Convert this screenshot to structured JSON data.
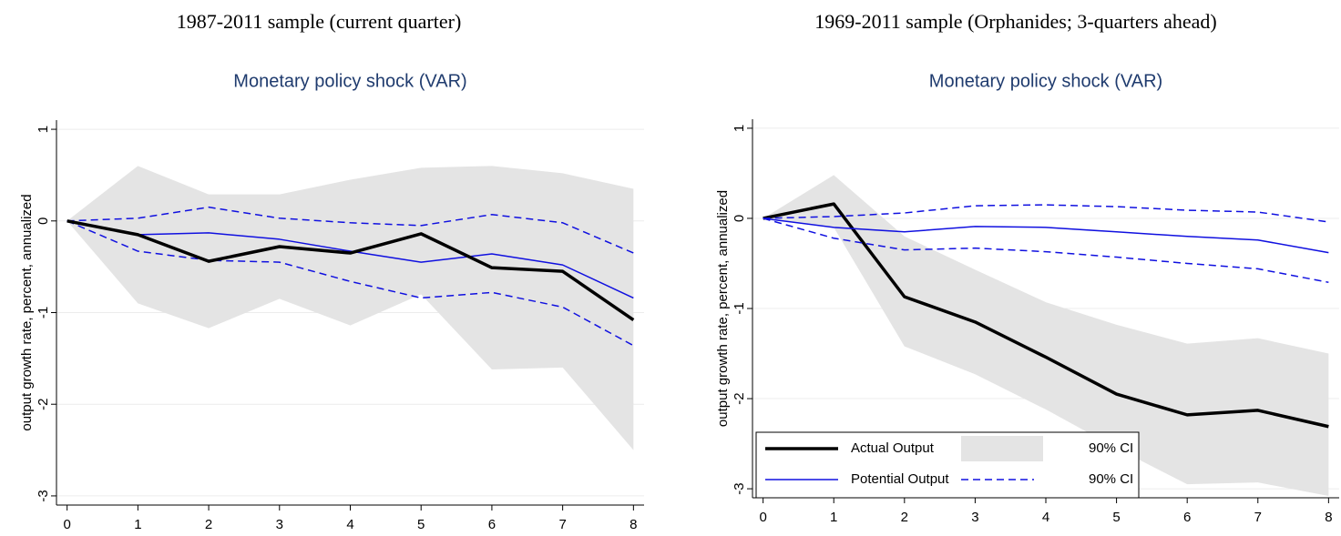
{
  "chart_data": [
    {
      "type": "line",
      "heading": "1987-2011 sample (current quarter)",
      "title": "Monetary policy shock (VAR)",
      "ylabel": "output growth rate, percent, annualized",
      "x": [
        0,
        1,
        2,
        3,
        4,
        5,
        6,
        7,
        8
      ],
      "xlim": [
        -0.15,
        8.15
      ],
      "xticks": [
        0,
        1,
        2,
        3,
        4,
        5,
        6,
        7,
        8
      ],
      "ylim": [
        -3.1,
        1.1
      ],
      "yticks": [
        -3,
        -2,
        -1,
        0,
        1
      ],
      "grid": true,
      "series": [
        {
          "type": "band",
          "color": "#e4e4e4",
          "upper": [
            0,
            0.6,
            0.29,
            0.29,
            0.45,
            0.58,
            0.6,
            0.52,
            0.35
          ],
          "lower": [
            0,
            -0.9,
            -1.17,
            -0.85,
            -1.14,
            -0.8,
            -1.62,
            -1.6,
            -2.5
          ]
        },
        {
          "type": "range",
          "color": "#1010e0",
          "style": "dashed",
          "upper": [
            0,
            0.03,
            0.15,
            0.03,
            -0.02,
            -0.05,
            0.07,
            -0.02,
            -0.35
          ],
          "lower": [
            0,
            -0.33,
            -0.43,
            -0.45,
            -0.66,
            -0.84,
            -0.78,
            -0.94,
            -1.36
          ]
        },
        {
          "type": "line",
          "color": "#1010e0",
          "style": "solid",
          "width": 1.5,
          "values": [
            0,
            -0.15,
            -0.13,
            -0.2,
            -0.33,
            -0.45,
            -0.36,
            -0.48,
            -0.84
          ]
        },
        {
          "type": "line",
          "color": "#000000",
          "style": "solid",
          "width": 3.5,
          "values": [
            0,
            -0.15,
            -0.44,
            -0.28,
            -0.35,
            -0.14,
            -0.51,
            -0.55,
            -1.08
          ]
        }
      ]
    },
    {
      "type": "line",
      "heading": "1969-2011 sample (Orphanides; 3-quarters ahead)",
      "title": "Monetary policy shock (VAR)",
      "ylabel": "output growth rate, percent, annualized",
      "x": [
        0,
        1,
        2,
        3,
        4,
        5,
        6,
        7,
        8
      ],
      "xlim": [
        -0.15,
        8.15
      ],
      "xticks": [
        0,
        1,
        2,
        3,
        4,
        5,
        6,
        7,
        8
      ],
      "ylim": [
        -3.1,
        1.1
      ],
      "yticks": [
        -3,
        -2,
        -1,
        0,
        1
      ],
      "grid": true,
      "legend": "lower left",
      "series": [
        {
          "name": "Actual Output",
          "type": "line",
          "color": "#000000",
          "style": "solid",
          "width": 3.5,
          "values": [
            0,
            0.16,
            -0.87,
            -1.15,
            -1.54,
            -1.95,
            -2.18,
            -2.13,
            -2.31
          ]
        },
        {
          "name": "90% CI",
          "type": "band",
          "color": "#e4e4e4",
          "upper": [
            0,
            0.48,
            -0.2,
            -0.57,
            -0.93,
            -1.18,
            -1.39,
            -1.33,
            -1.5
          ],
          "lower": [
            0,
            -0.1,
            -1.42,
            -1.73,
            -2.12,
            -2.55,
            -2.95,
            -2.93,
            -3.08
          ]
        },
        {
          "name": "Potential Output",
          "type": "line",
          "color": "#1010e0",
          "style": "solid",
          "width": 1.5,
          "values": [
            0,
            -0.1,
            -0.15,
            -0.09,
            -0.1,
            -0.15,
            -0.2,
            -0.24,
            -0.38
          ]
        },
        {
          "name": "90% CI",
          "type": "range",
          "color": "#1010e0",
          "style": "dashed",
          "upper": [
            0,
            0.02,
            0.06,
            0.14,
            0.15,
            0.13,
            0.09,
            0.07,
            -0.04
          ],
          "lower": [
            0,
            -0.22,
            -0.35,
            -0.33,
            -0.37,
            -0.43,
            -0.5,
            -0.56,
            -0.71
          ]
        }
      ]
    }
  ]
}
